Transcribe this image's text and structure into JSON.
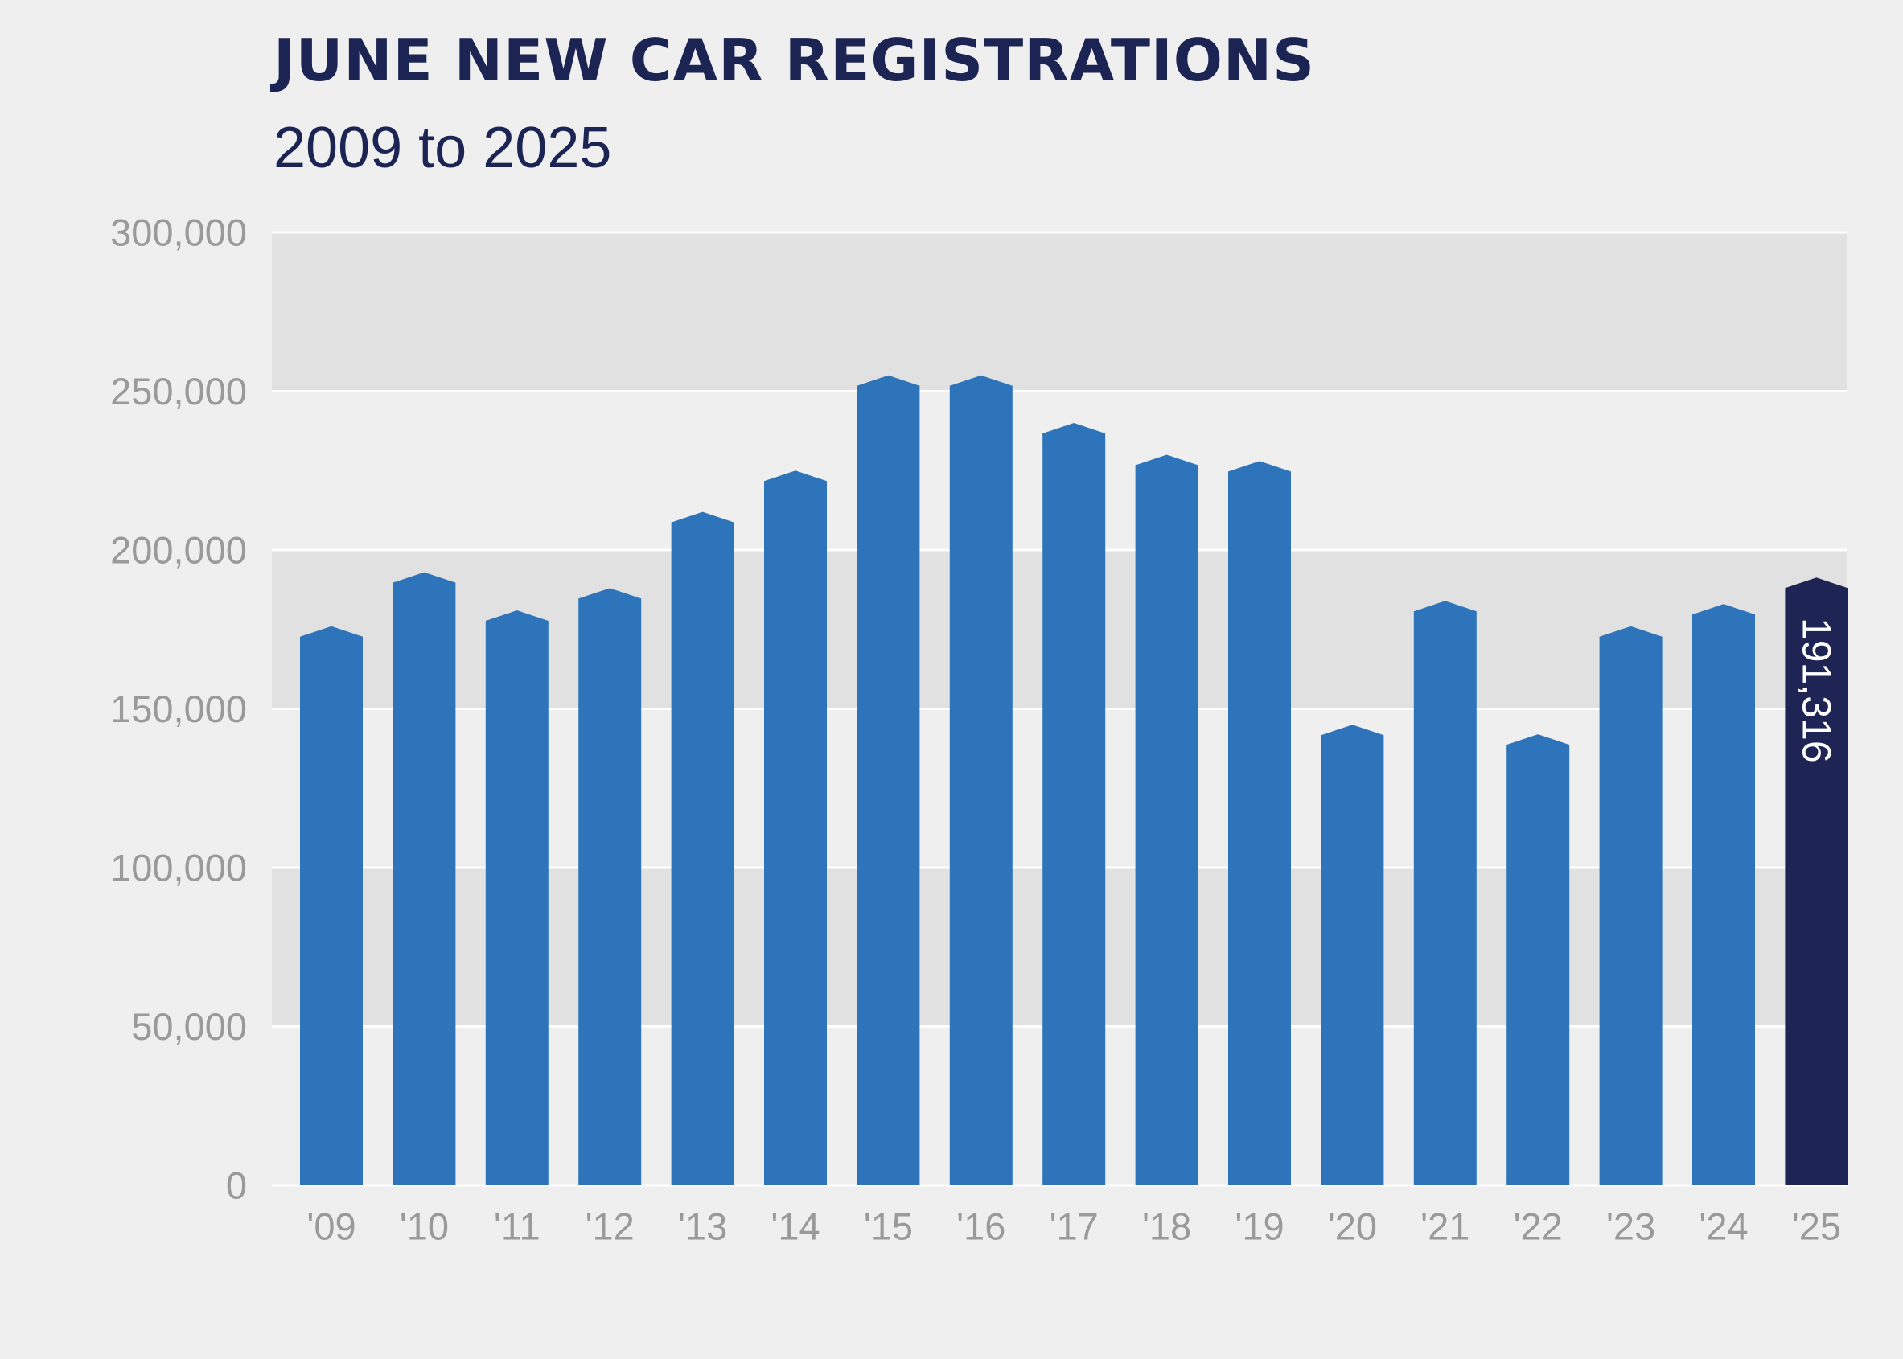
{
  "title": "JUNE NEW CAR REGISTRATIONS",
  "subtitle": "2009 to 2025",
  "colors": {
    "background": "#efefef",
    "band": "#e1e1e1",
    "bar": "#2e74ba",
    "highlight_bar": "#1e2453",
    "title": "#1b2452",
    "tick": "#9a9a9a"
  },
  "chart_data": {
    "type": "bar",
    "title": "JUNE NEW CAR REGISTRATIONS",
    "subtitle": "2009 to 2025",
    "xlabel": "",
    "ylabel": "",
    "categories": [
      "'09",
      "'10",
      "'11",
      "'12",
      "'13",
      "'14",
      "'15",
      "'16",
      "'17",
      "'18",
      "'19",
      "'20",
      "'21",
      "'22",
      "'23",
      "'24",
      "'25"
    ],
    "values": [
      176000,
      193000,
      181000,
      188000,
      212000,
      225000,
      255000,
      255000,
      240000,
      230000,
      228000,
      145000,
      184000,
      142000,
      176000,
      183000,
      191316
    ],
    "ylim": [
      0,
      300000
    ],
    "yticks": [
      "0",
      "50,000",
      "100,000",
      "150,000",
      "200,000",
      "250,000",
      "300,000"
    ],
    "highlight_index": 16,
    "highlight_label": "191,316",
    "grid": true,
    "legend": "none"
  }
}
